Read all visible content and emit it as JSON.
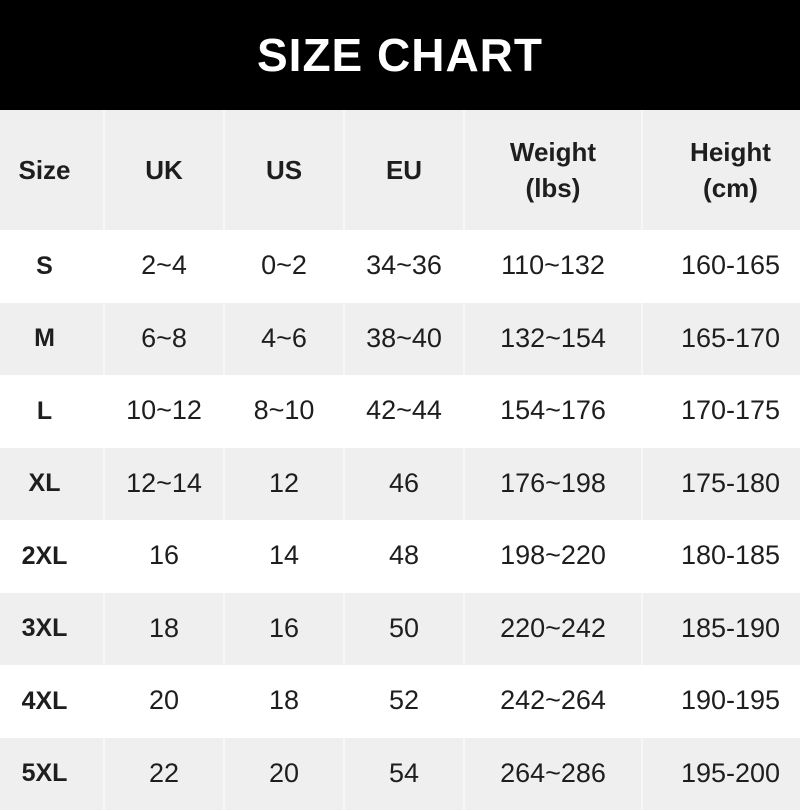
{
  "title": "SIZE CHART",
  "chart_data": {
    "type": "table",
    "title": "SIZE CHART",
    "columns": [
      "Size",
      "UK",
      "US",
      "EU",
      "Weight\n(lbs)",
      "Height\n(cm)"
    ],
    "rows": [
      [
        "S",
        "2~4",
        "0~2",
        "34~36",
        "110~132",
        "160-165"
      ],
      [
        "M",
        "6~8",
        "4~6",
        "38~40",
        "132~154",
        "165-170"
      ],
      [
        "L",
        "10~12",
        "8~10",
        "42~44",
        "154~176",
        "170-175"
      ],
      [
        "XL",
        "12~14",
        "12",
        "46",
        "176~198",
        "175-180"
      ],
      [
        "2XL",
        "16",
        "14",
        "48",
        "198~220",
        "180-185"
      ],
      [
        "3XL",
        "18",
        "16",
        "50",
        "220~242",
        "185-190"
      ],
      [
        "4XL",
        "20",
        "18",
        "52",
        "242~264",
        "190-195"
      ],
      [
        "5XL",
        "22",
        "20",
        "54",
        "264~286",
        "195-200"
      ]
    ]
  },
  "colors": {
    "banner": "#000000",
    "stripe": "#efefef",
    "text": "#1e1e1e"
  }
}
